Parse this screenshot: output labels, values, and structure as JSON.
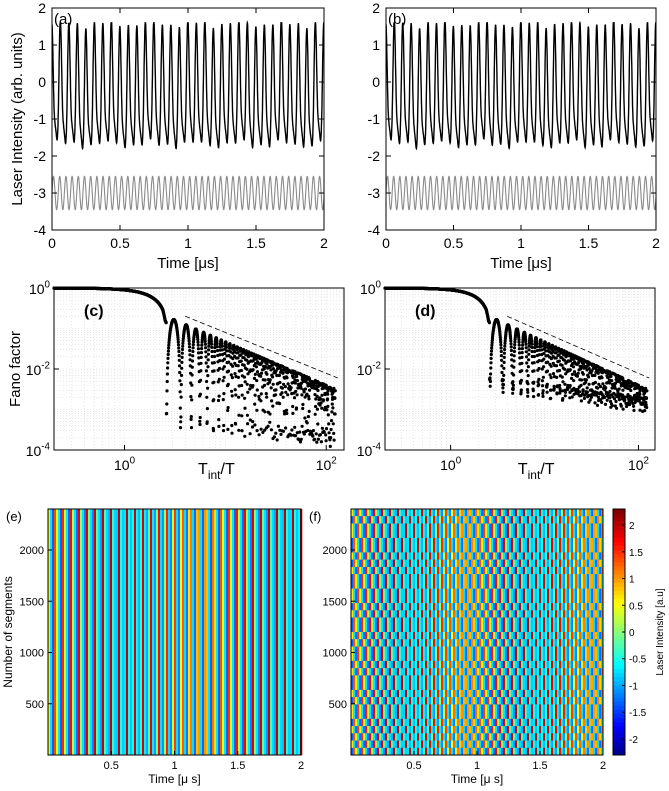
{
  "chart_data": [
    {
      "panel": "(a)",
      "type": "line",
      "xlabel": "Time [μs]",
      "ylabel": "Laser Intensity (arb. units)",
      "xlim": [
        0,
        2
      ],
      "ylim": [
        -4,
        2
      ],
      "xticks": [
        0,
        0.5,
        1,
        1.5,
        2
      ],
      "xtick_labels": [
        "0",
        "0.5",
        "1",
        "1.5",
        "2"
      ],
      "yticks": [
        -4,
        -3,
        -2,
        -1,
        0,
        1,
        2
      ],
      "ytick_labels": [
        "-4",
        "-3",
        "-2",
        "-1",
        "0",
        "1",
        "2"
      ],
      "grid": false,
      "series": [
        {
          "color": "#000000",
          "period_us": 0.0625,
          "peak_max": 1.6,
          "mid_level": -0.2,
          "trough_min": -2.15,
          "t_range": [
            0,
            2
          ]
        },
        {
          "color": "#8a8a8a",
          "period_us": 0.0455,
          "offset": -3.0,
          "amplitude": 0.45,
          "t_range": [
            0,
            2
          ]
        }
      ]
    },
    {
      "panel": "(b)",
      "type": "line",
      "xlabel": "Time [μs]",
      "ylabel": "",
      "xlim": [
        0,
        2
      ],
      "ylim": [
        -4,
        2
      ],
      "xticks": [
        0,
        0.5,
        1,
        1.5,
        2
      ],
      "xtick_labels": [
        "0",
        "0.5",
        "1",
        "1.5",
        "2"
      ],
      "yticks": [
        -4,
        -3,
        -2,
        -1,
        0,
        1,
        2
      ],
      "ytick_labels": [
        "-4",
        "-3",
        "-2",
        "-1",
        "0",
        "1",
        "2"
      ],
      "grid": false,
      "series": [
        {
          "color": "#000000",
          "period_us": 0.0625,
          "peak_max": 1.6,
          "mid_level": -0.2,
          "trough_min": -2.25,
          "t_range": [
            0,
            2
          ]
        },
        {
          "color": "#8a8a8a",
          "period_us": 0.0455,
          "offset": -3.0,
          "amplitude": 0.45,
          "t_range": [
            0,
            2
          ]
        }
      ]
    },
    {
      "panel": "(c)",
      "type": "scatter",
      "xscale": "log",
      "yscale": "log",
      "xlabel_main": "T",
      "xlabel_sub": "int",
      "xlabel_rest": "/T",
      "ylabel": "Fano factor",
      "xlim": [
        0.2,
        150
      ],
      "ylim": [
        0.0001,
        1
      ],
      "yticks": [
        0.0001,
        0.01,
        1
      ],
      "ytick_labels": [
        {
          "base": "10",
          "exp": "-4"
        },
        {
          "base": "10",
          "exp": "-2"
        },
        {
          "base": "10",
          "exp": "0"
        }
      ],
      "xticks": [
        1,
        100
      ],
      "xtick_labels": [
        {
          "base": "10",
          "exp": "0"
        },
        {
          "base": "10",
          "exp": "2"
        }
      ],
      "grid": true,
      "first_dip_x": 2.6,
      "dip_period": 1,
      "upper_envelope_at_first_dip": 0.2,
      "upper_envelope_at_x100": 0.004,
      "dip_min_at_x100": 0.0002,
      "reference_line": {
        "x": [
          4,
          130
        ],
        "y": [
          0.2,
          0.006
        ],
        "style": "dashed"
      }
    },
    {
      "panel": "(d)",
      "type": "scatter",
      "xscale": "log",
      "yscale": "log",
      "xlabel_main": "T",
      "xlabel_sub": "int",
      "xlabel_rest": "/T",
      "ylabel": "",
      "xlim": [
        0.2,
        150
      ],
      "ylim": [
        0.0001,
        1
      ],
      "yticks": [
        0.0001,
        0.01,
        1
      ],
      "ytick_labels": [
        {
          "base": "10",
          "exp": "-4"
        },
        {
          "base": "10",
          "exp": "-2"
        },
        {
          "base": "10",
          "exp": "0"
        }
      ],
      "xticks": [
        1,
        100
      ],
      "xtick_labels": [
        {
          "base": "10",
          "exp": "0"
        },
        {
          "base": "10",
          "exp": "2"
        }
      ],
      "grid": true,
      "first_dip_x": 2.6,
      "dip_period": 1,
      "upper_envelope_at_first_dip": 0.2,
      "upper_envelope_at_x100": 0.004,
      "dip_min_at_x100": 0.0015,
      "reference_line": {
        "x": [
          4,
          130
        ],
        "y": [
          0.2,
          0.006
        ],
        "style": "dashed"
      }
    },
    {
      "panel": "(e)",
      "type": "heatmap",
      "xlabel": "Time [μ s]",
      "ylabel": "Number of segments",
      "xlim": [
        0,
        2
      ],
      "ylim": [
        0,
        2400
      ],
      "xticks": [
        0.5,
        1,
        1.5,
        2
      ],
      "xtick_labels": [
        "0.5",
        "1",
        "1.5",
        "2"
      ],
      "yticks": [
        500,
        1000,
        1500,
        2000
      ],
      "ytick_labels": [
        "500",
        "1000",
        "1500",
        "2000"
      ],
      "stripe_period_us": 0.0625,
      "pattern": "regular vertical stripes, identical in every segment"
    },
    {
      "panel": "(f)",
      "type": "heatmap",
      "xlabel": "Time [μ s]",
      "ylabel": "",
      "xlim": [
        0,
        2
      ],
      "ylim": [
        0,
        2400
      ],
      "xticks": [
        0.5,
        1,
        1.5,
        2
      ],
      "xtick_labels": [
        "0.5",
        "1",
        "1.5",
        "2"
      ],
      "yticks": [
        500,
        1000,
        1500,
        2000
      ],
      "ytick_labels": [
        "500",
        "1000",
        "1500",
        "2000"
      ],
      "stripe_period_us": 0.0625,
      "pattern": "stripes with phase alternating between segment bands (checkerboard)",
      "colorbar": {
        "label": "Laser Intensity [a.u]",
        "range": [
          -2.3,
          2.3
        ],
        "ticks": [
          -2,
          -1.5,
          -1,
          -0.5,
          0,
          0.5,
          1,
          1.5,
          2
        ],
        "tick_labels": [
          "-2",
          "-1.5",
          "-1",
          "-0.5",
          "0",
          "0.5",
          "1",
          "1.5",
          "2"
        ],
        "colormap": "jet"
      }
    }
  ]
}
